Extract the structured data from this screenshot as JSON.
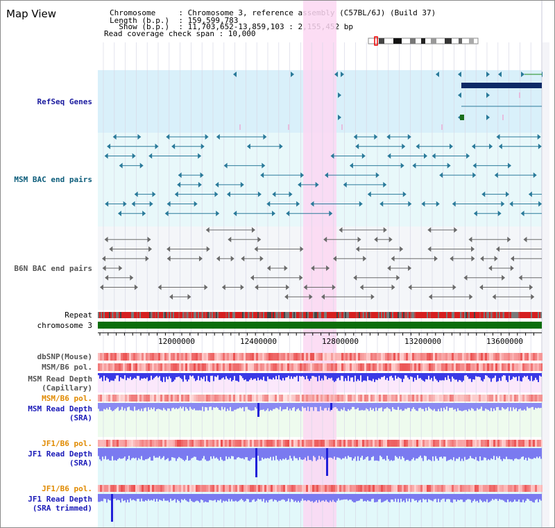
{
  "app": {
    "title": "Map View"
  },
  "info": {
    "lines": [
      "Chromosome     : Chromosome 3, reference assembly (C57BL/6J) (Build 37)",
      "Length (b.p.)  : 159,599,783",
      "  Show (b.p.)  : 11,703,652-13,859,103 : 2,155,452 bp",
      "Read coverage check span : 10,000"
    ]
  },
  "tracks": {
    "refseq": "RefSeq Genes",
    "msm_bac": "MSM BAC end pairs",
    "b6n_bac": "B6N BAC end pairs",
    "repeat": "Repeat",
    "chromosome": "chromosome 3",
    "dbsnp": "dbSNP(Mouse)",
    "msm_b6_pol": "MSM/B6 pol.",
    "msm_depth_cap_1": "MSM Read Depth",
    "msm_depth_cap_2": "(Capillary)",
    "msm_b6_pol2": "MSM/B6 pol.",
    "msm_depth_sra_1": "MSM Read Depth",
    "msm_depth_sra_2": "(SRA)",
    "jf1_b6_pol": "JF1/B6 pol.",
    "jf1_depth_sra_1": "JF1 Read Depth",
    "jf1_depth_sra_2": "(SRA)",
    "jf1_b6_pol2": "JF1/B6 pol.",
    "jf1_depth_trim_1": "JF1 Read Depth",
    "jf1_depth_trim_2": "(SRA trimmed)"
  },
  "axis": {
    "ticks": [
      "12000000",
      "12400000",
      "12800000",
      "13200000",
      "13600000"
    ]
  },
  "colors": {
    "highlight": "#fbd7f2",
    "refseq_bg": "#d9f0fa",
    "msm_bg": "#e8f8fa",
    "b6n_bg": "#f4f6f9",
    "chromosome": "#0b6e0b",
    "gene_dark": "#0d2a66",
    "teal": "#2a7a9a",
    "depth_blue": "#3b3be8"
  }
}
